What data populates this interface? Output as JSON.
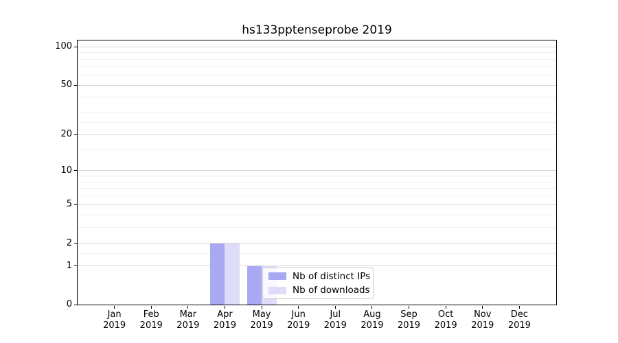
{
  "figure": {
    "title": "hs133pptenseprobe 2019"
  },
  "chart_data": {
    "type": "bar",
    "title": "hs133pptenseprobe 2019",
    "categories": [
      "Jan",
      "Feb",
      "Mar",
      "Apr",
      "May",
      "Jun",
      "Jul",
      "Aug",
      "Sep",
      "Oct",
      "Nov",
      "Dec"
    ],
    "category_year": "2019",
    "series": [
      {
        "name": "Nb of distinct IPs",
        "color": "#a9a9f3",
        "values": [
          0,
          0,
          0,
          2,
          1,
          0,
          0,
          0,
          0,
          0,
          0,
          0
        ]
      },
      {
        "name": "Nb of downloads",
        "color": "#dedcf9",
        "values": [
          0,
          0,
          0,
          2,
          1,
          0,
          0,
          0,
          0,
          0,
          0,
          0
        ]
      }
    ],
    "yscale": "log1p",
    "ylim": [
      0,
      111
    ],
    "yticks": [
      0,
      1,
      2,
      5,
      10,
      20,
      50,
      100
    ],
    "yticks_minor": [
      1.5,
      3,
      4,
      6,
      7,
      8,
      9,
      15,
      25,
      30,
      40,
      60,
      70,
      80,
      90
    ],
    "grid": "horizontal only, major and minor",
    "legend_position": "inside lower right of plot"
  },
  "colors": {
    "background": "#ffffff",
    "bar_distinct_ips": "#a9a9f3",
    "bar_downloads": "#dedcf9",
    "grid_major": "#d7d7d7",
    "grid_minor": "#f0f0f0",
    "axis": "#000000",
    "legend_border": "#cccccc"
  }
}
